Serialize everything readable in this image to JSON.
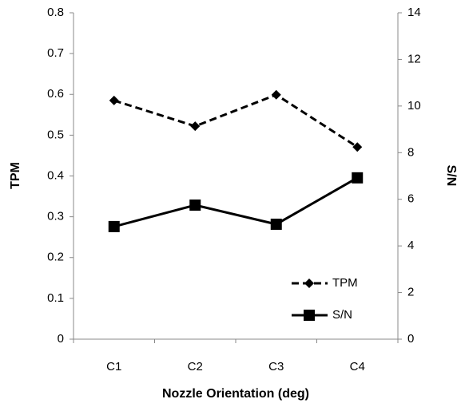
{
  "chart_data": {
    "type": "line",
    "x_label": "Nozzle Orientation (deg)",
    "y_label": "TPM",
    "y2_label": "S/N",
    "categories": [
      "C1",
      "C2",
      "C3",
      "C4"
    ],
    "series": [
      {
        "name": "TPM",
        "color": "#000000",
        "line_style": "dashed",
        "marker": "diamond",
        "values": [
          0.585,
          0.522,
          0.599,
          0.471
        ]
      },
      {
        "name": "S/N",
        "color": "#000000",
        "line_style": "solid",
        "marker": "square",
        "axis": "y2",
        "values": [
          4.83,
          5.75,
          4.93,
          6.92
        ]
      }
    ],
    "ylim": [
      0,
      0.8
    ],
    "yticks": [
      0,
      0.1,
      0.2,
      0.3,
      0.4,
      0.5,
      0.6,
      0.7,
      0.8
    ],
    "y2lim": [
      0,
      14
    ],
    "y2ticks": [
      0,
      2,
      4,
      6,
      8,
      10,
      12,
      14
    ],
    "grid": false,
    "legend": "lower right"
  }
}
